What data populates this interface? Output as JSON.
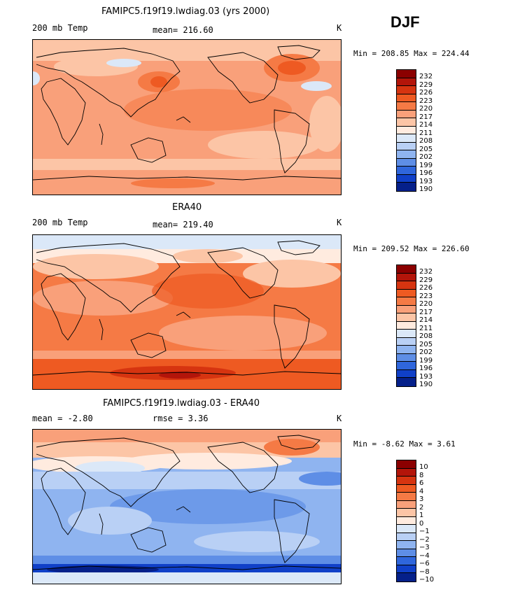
{
  "season": "DJF",
  "panels": [
    {
      "title": "FAMIPC5.f19f19.lwdiag.03 (yrs 2000)",
      "left_label": "200 mb Temp",
      "center_label": "mean= 216.60",
      "units": "K",
      "min_max": "Min = 208.85 Max = 224.44"
    },
    {
      "title": "ERA40",
      "left_label": "200 mb Temp",
      "center_label": "mean= 219.40",
      "units": "K",
      "min_max": "Min = 209.52 Max = 226.60"
    },
    {
      "title": "FAMIPC5.f19f19.lwdiag.03 - ERA40",
      "left_label": "mean =  -2.80",
      "center_label": "rmse =   3.36",
      "units": "K",
      "min_max": "Min =  -8.62 Max =   3.61"
    }
  ],
  "colorbars": {
    "temp": {
      "levels": [
        "232",
        "229",
        "226",
        "223",
        "220",
        "217",
        "214",
        "211",
        "208",
        "205",
        "202",
        "199",
        "196",
        "193",
        "190"
      ],
      "colors": [
        "#8b0000",
        "#b3150a",
        "#d63410",
        "#ee5a22",
        "#f57a45",
        "#f9a07a",
        "#fcc5a6",
        "#ffebdf",
        "#dbe8f8",
        "#b9d0f5",
        "#8fb4f0",
        "#5e8ee6",
        "#2f66dc",
        "#1040c8",
        "#05208a"
      ]
    },
    "diff": {
      "levels": [
        "10",
        "8",
        "6",
        "4",
        "3",
        "2",
        "1",
        "0",
        "−1",
        "−2",
        "−3",
        "−4",
        "−6",
        "−8",
        "−10"
      ],
      "colors": [
        "#8b0000",
        "#b3150a",
        "#d63410",
        "#ee5a22",
        "#f57a45",
        "#f9a07a",
        "#fcc5a6",
        "#ffebdf",
        "#dbe8f8",
        "#b9d0f5",
        "#8fb4f0",
        "#5e8ee6",
        "#2f66dc",
        "#1040c8",
        "#05208a"
      ]
    }
  }
}
